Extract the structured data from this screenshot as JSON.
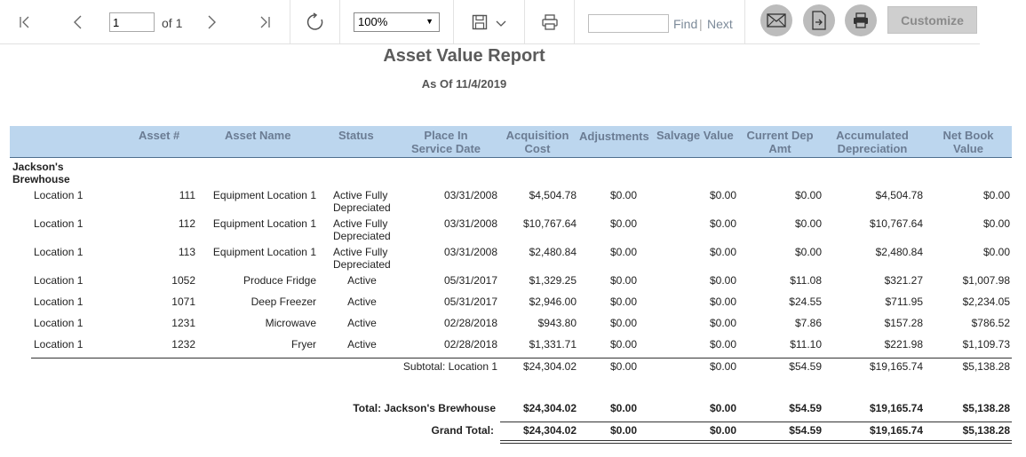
{
  "toolbar": {
    "page_value": "1",
    "page_of": "of 1",
    "zoom_value": "100%",
    "find_placeholder": "",
    "find_label": "Find",
    "next_label": "Next",
    "customize_label": "Customize",
    "icons": [
      "first-page-icon",
      "prev-page-icon",
      "next-page-icon",
      "last-page-icon",
      "refresh-icon",
      "save-icon",
      "chevron-down-icon",
      "print-icon",
      "email-icon",
      "export-icon",
      "print-circle-icon"
    ]
  },
  "report": {
    "title": "Asset Value Report",
    "subtitle": "As Of 11/4/2019",
    "columns": {
      "asset_no": "Asset #",
      "asset_name": "Asset Name",
      "status": "Status",
      "place_l1": "Place In",
      "place_l2": "Service Date",
      "acq_l1": "Acquisition",
      "acq_l2": "Cost",
      "adjustments": "Adjustments",
      "salvage": "Salvage Value",
      "curdep_l1": "Current Dep",
      "curdep_l2": "Amt",
      "accum_l1": "Accumulated",
      "accum_l2": "Depreciation",
      "nbv_l1": "Net Book",
      "nbv_l2": "Value"
    },
    "group_name": "Jackson's Brewhouse",
    "rows": [
      {
        "location": "Location 1",
        "asset_no": "111",
        "asset_name": "Equipment Location 1",
        "status_l1": "Active Fully",
        "status_l2": "Depreciated",
        "date": "03/31/2008",
        "acq": "$4,504.78",
        "adj": "$0.00",
        "salvage": "$0.00",
        "curdep": "$0.00",
        "accum": "$4,504.78",
        "nbv": "$0.00"
      },
      {
        "location": "Location 1",
        "asset_no": "112",
        "asset_name": "Equipment Location 1",
        "status_l1": "Active Fully",
        "status_l2": "Depreciated",
        "date": "03/31/2008",
        "acq": "$10,767.64",
        "adj": "$0.00",
        "salvage": "$0.00",
        "curdep": "$0.00",
        "accum": "$10,767.64",
        "nbv": "$0.00"
      },
      {
        "location": "Location 1",
        "asset_no": "113",
        "asset_name": "Equipment Location 1",
        "status_l1": "Active Fully",
        "status_l2": "Depreciated",
        "date": "03/31/2008",
        "acq": "$2,480.84",
        "adj": "$0.00",
        "salvage": "$0.00",
        "curdep": "$0.00",
        "accum": "$2,480.84",
        "nbv": "$0.00"
      },
      {
        "location": "Location 1",
        "asset_no": "1052",
        "asset_name": "Produce Fridge",
        "status_l1": "Active",
        "status_l2": "",
        "date": "05/31/2017",
        "acq": "$1,329.25",
        "adj": "$0.00",
        "salvage": "$0.00",
        "curdep": "$11.08",
        "accum": "$321.27",
        "nbv": "$1,007.98"
      },
      {
        "location": "Location 1",
        "asset_no": "1071",
        "asset_name": "Deep Freezer",
        "status_l1": "Active",
        "status_l2": "",
        "date": "05/31/2017",
        "acq": "$2,946.00",
        "adj": "$0.00",
        "salvage": "$0.00",
        "curdep": "$24.55",
        "accum": "$711.95",
        "nbv": "$2,234.05"
      },
      {
        "location": "Location 1",
        "asset_no": "1231",
        "asset_name": "Microwave",
        "status_l1": "Active",
        "status_l2": "",
        "date": "02/28/2018",
        "acq": "$943.80",
        "adj": "$0.00",
        "salvage": "$0.00",
        "curdep": "$7.86",
        "accum": "$157.28",
        "nbv": "$786.52"
      },
      {
        "location": "Location 1",
        "asset_no": "1232",
        "asset_name": "Fryer",
        "status_l1": "Active",
        "status_l2": "",
        "date": "02/28/2018",
        "acq": "$1,331.71",
        "adj": "$0.00",
        "salvage": "$0.00",
        "curdep": "$11.10",
        "accum": "$221.98",
        "nbv": "$1,109.73"
      }
    ],
    "subtotal": {
      "label": "Subtotal: Location 1",
      "acq": "$24,304.02",
      "adj": "$0.00",
      "salvage": "$0.00",
      "curdep": "$54.59",
      "accum": "$19,165.74",
      "nbv": "$5,138.28"
    },
    "total": {
      "label": "Total: Jackson's Brewhouse",
      "acq": "$24,304.02",
      "adj": "$0.00",
      "salvage": "$0.00",
      "curdep": "$54.59",
      "accum": "$19,165.74",
      "nbv": "$5,138.28"
    },
    "grand_total": {
      "label": "Grand Total:",
      "acq": "$24,304.02",
      "adj": "$0.00",
      "salvage": "$0.00",
      "curdep": "$54.59",
      "accum": "$19,165.74",
      "nbv": "$5,138.28"
    }
  }
}
